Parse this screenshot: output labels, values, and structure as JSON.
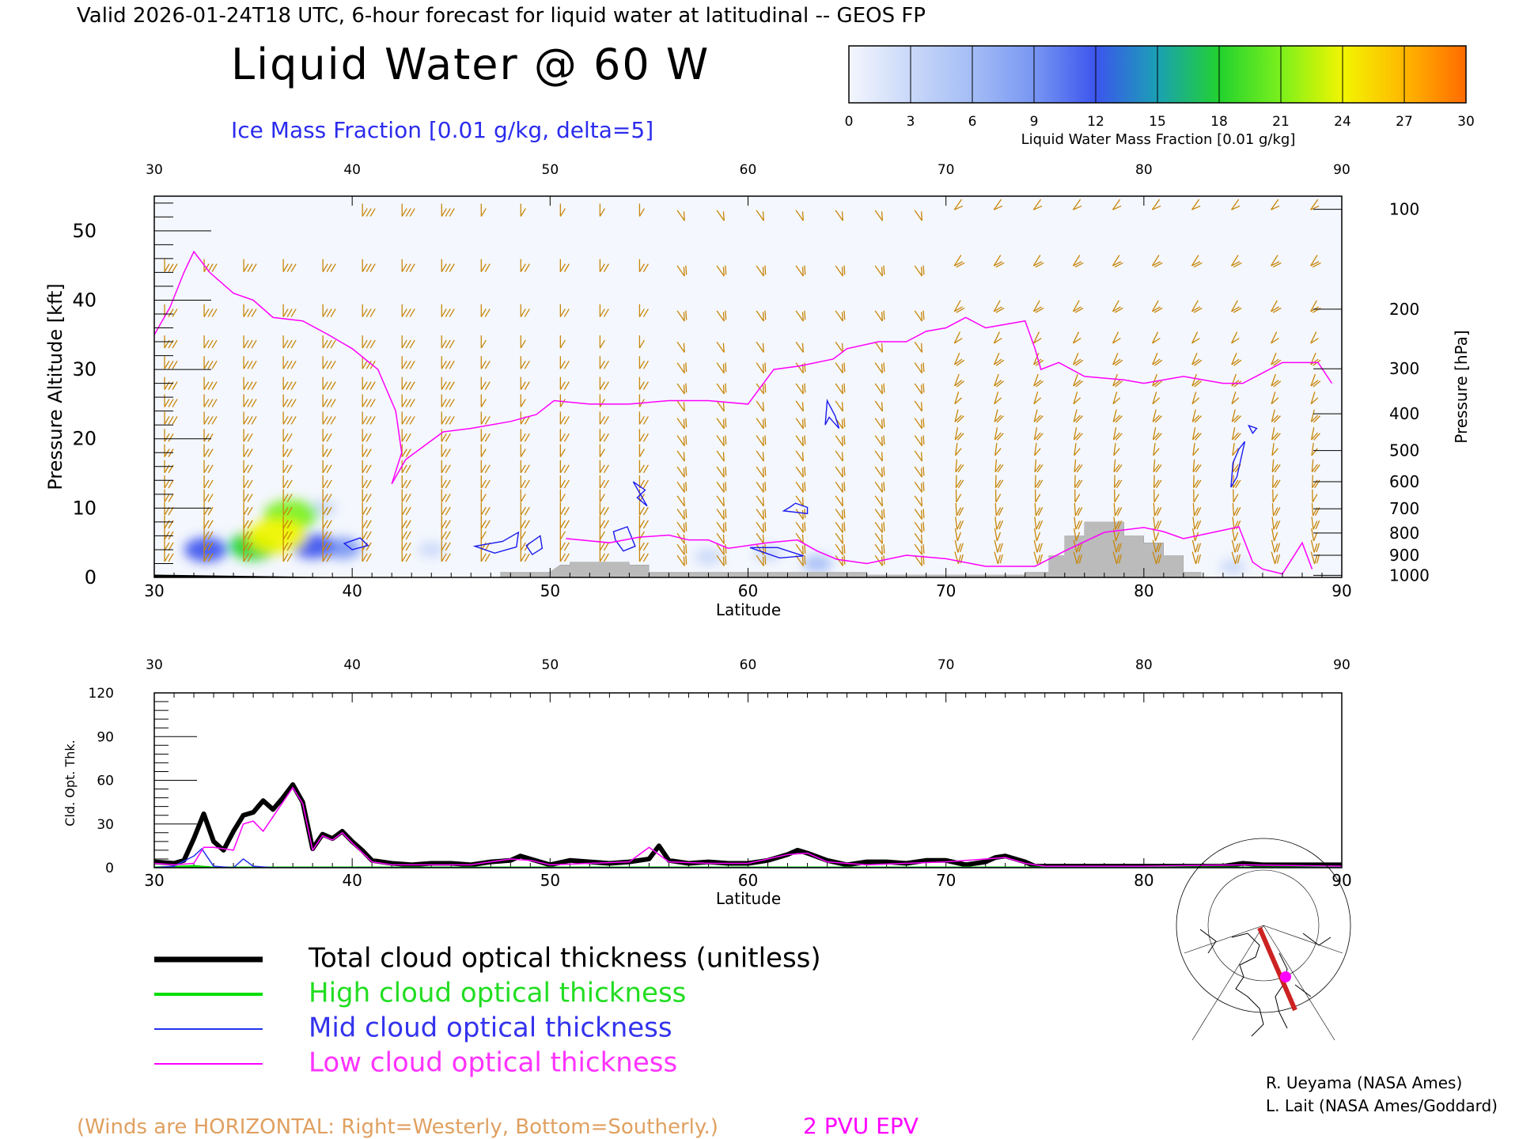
{
  "header": {
    "valid_line": "Valid 2026-01-24T18 UTC, 6-hour forecast for liquid water at latitudinal -- GEOS FP",
    "title": "Liquid Water @ 60 W",
    "subtitle": "Ice Mass Fraction [0.01 g/kg, delta=5]"
  },
  "colorbar": {
    "label": "Liquid Water Mass Fraction [0.01 g/kg]",
    "ticks": [
      "0",
      "3",
      "6",
      "9",
      "12",
      "15",
      "18",
      "21",
      "24",
      "27",
      "30"
    ],
    "colors": [
      "#f3f6fd",
      "#c9d8f9",
      "#a4bdf6",
      "#7896f2",
      "#3c55ee",
      "#1aa0b4",
      "#22d22e",
      "#7cf01c",
      "#f2f500",
      "#ffb700",
      "#ff6a00",
      "#ff2a00"
    ]
  },
  "colors": {
    "wind": "#c8860a",
    "epv": "#ff00ff",
    "ice": "#1a1aee",
    "terrain": "#bbbbbb",
    "total": "#000000",
    "high": "#00dd00",
    "mid": "#2233ee",
    "low": "#ff00ff"
  },
  "chart_data": [
    {
      "type": "heatmap",
      "title": "Liquid Water @ 60 W",
      "xlabel": "Latitude",
      "ylabel": "Pressure Altitude [kft]",
      "ylabel_right": "Pressure [hPa]",
      "xlim": [
        30,
        90
      ],
      "ylim": [
        0,
        55
      ],
      "x_ticks": [
        "30",
        "40",
        "50",
        "60",
        "70",
        "80",
        "90"
      ],
      "x_ticks_top": [
        "30",
        "40",
        "50",
        "60",
        "70",
        "80",
        "90"
      ],
      "y_ticks": [
        "0",
        "10",
        "20",
        "30",
        "40",
        "50"
      ],
      "pressure_ticks": [
        {
          "label": "100",
          "kft": 53.1
        },
        {
          "label": "200",
          "kft": 38.7
        },
        {
          "label": "300",
          "kft": 30.1
        },
        {
          "label": "400",
          "kft": 23.6
        },
        {
          "label": "500",
          "kft": 18.3
        },
        {
          "label": "600",
          "kft": 13.8
        },
        {
          "label": "700",
          "kft": 9.9
        },
        {
          "label": "800",
          "kft": 6.4
        },
        {
          "label": "900",
          "kft": 3.2
        },
        {
          "label": "1000",
          "kft": 0.3
        }
      ],
      "liquid_water_blobs": [
        {
          "lat": 32.6,
          "kft": 4.0,
          "value": 12
        },
        {
          "lat": 36.9,
          "kft": 9.0,
          "value": 18
        },
        {
          "lat": 36.2,
          "kft": 6.0,
          "value": 21
        },
        {
          "lat": 35.0,
          "kft": 4.5,
          "value": 15
        },
        {
          "lat": 38.0,
          "kft": 4.5,
          "value": 12
        },
        {
          "lat": 39.5,
          "kft": 4.2,
          "value": 9
        },
        {
          "lat": 38.5,
          "kft": 10.0,
          "value": 4
        },
        {
          "lat": 58.0,
          "kft": 3.0,
          "value": 4
        },
        {
          "lat": 63.5,
          "kft": 2.0,
          "value": 5
        },
        {
          "lat": 61.0,
          "kft": 3.5,
          "value": 4
        },
        {
          "lat": 44.0,
          "kft": 4.0,
          "value": 3
        },
        {
          "lat": 84.5,
          "kft": 1.5,
          "value": 3
        }
      ],
      "epv_2pvu": [
        [
          30,
          35
        ],
        [
          30.8,
          39
        ],
        [
          31.5,
          44
        ],
        [
          32,
          47
        ],
        [
          32.8,
          44
        ],
        [
          34,
          41
        ],
        [
          35,
          40
        ],
        [
          36,
          37.5
        ],
        [
          37.5,
          37
        ],
        [
          38.8,
          35
        ],
        [
          40,
          33
        ],
        [
          41.3,
          30
        ],
        [
          42.2,
          24
        ],
        [
          42.5,
          18
        ],
        [
          42,
          13.5
        ],
        [
          42.7,
          17
        ],
        [
          44.6,
          21
        ],
        [
          46,
          21.5
        ],
        [
          48,
          22.5
        ],
        [
          49.3,
          23.5
        ],
        [
          50.2,
          25.5
        ],
        [
          52,
          25
        ],
        [
          54,
          25
        ],
        [
          56,
          25.5
        ],
        [
          58,
          25.5
        ],
        [
          60,
          25
        ],
        [
          61.3,
          30
        ],
        [
          62.6,
          30.5
        ],
        [
          64.3,
          31.5
        ],
        [
          65,
          33
        ],
        [
          66.6,
          34
        ],
        [
          68,
          34
        ],
        [
          69,
          35.5
        ],
        [
          70,
          36
        ],
        [
          71,
          37.5
        ],
        [
          72,
          36
        ],
        [
          74,
          37
        ],
        [
          74.5,
          33
        ],
        [
          74.8,
          30
        ],
        [
          75.7,
          31
        ],
        [
          77,
          29
        ],
        [
          79,
          28.5
        ],
        [
          80,
          28
        ],
        [
          82,
          29
        ],
        [
          84,
          28
        ],
        [
          85,
          28
        ],
        [
          87,
          31
        ],
        [
          88.8,
          31
        ],
        [
          89.5,
          28
        ]
      ],
      "epv_low": [
        [
          50.8,
          5.6
        ],
        [
          53,
          5
        ],
        [
          54.5,
          5.8
        ],
        [
          56,
          6.1
        ],
        [
          57,
          5.4
        ],
        [
          58,
          5.4
        ],
        [
          59,
          4.2
        ],
        [
          61,
          5
        ],
        [
          62.5,
          5.4
        ],
        [
          63.5,
          3.8
        ],
        [
          64.5,
          2.6
        ],
        [
          66,
          2
        ],
        [
          68,
          3.2
        ],
        [
          70,
          2.7
        ],
        [
          72,
          1.6
        ],
        [
          74.5,
          1.6
        ],
        [
          76,
          3.8
        ],
        [
          78,
          6.5
        ],
        [
          80,
          7.2
        ],
        [
          81,
          6.6
        ],
        [
          82,
          5.6
        ],
        [
          84,
          6.8
        ],
        [
          84.8,
          7.3
        ],
        [
          85.5,
          2.2
        ],
        [
          86,
          1.2
        ],
        [
          87,
          0.5
        ],
        [
          88,
          5
        ],
        [
          88.5,
          1.2
        ]
      ],
      "ice_contours": [
        [
          [
            40,
            4
          ],
          [
            39.6,
            4.9
          ],
          [
            40.4,
            5.7
          ],
          [
            40.8,
            4.6
          ]
        ],
        [
          [
            46.2,
            4.5
          ],
          [
            47.6,
            5.2
          ],
          [
            48.4,
            6.5
          ],
          [
            48.3,
            4.4
          ],
          [
            47.2,
            3.5
          ]
        ],
        [
          [
            48.8,
            4.6
          ],
          [
            49.5,
            6.0
          ],
          [
            49.6,
            4.2
          ],
          [
            49.1,
            3.3
          ]
        ],
        [
          [
            53.3,
            5.4
          ],
          [
            53.2,
            6.6
          ],
          [
            53.9,
            7.3
          ],
          [
            54.3,
            4.5
          ],
          [
            53.7,
            3.8
          ]
        ],
        [
          [
            54.2,
            13.8
          ],
          [
            54.8,
            12.6
          ],
          [
            54.4,
            11.5
          ],
          [
            54.9,
            10.3
          ]
        ],
        [
          [
            62.1,
            10.1
          ],
          [
            61.8,
            9.6
          ],
          [
            63.0,
            9.2
          ],
          [
            63.0,
            10.1
          ],
          [
            62.4,
            10.7
          ]
        ],
        [
          [
            64.0,
            25.5
          ],
          [
            64.4,
            23.3
          ],
          [
            64.6,
            21.5
          ],
          [
            64.1,
            23.1
          ],
          [
            63.9,
            22.0
          ]
        ],
        [
          [
            84.5,
            16.5
          ],
          [
            84.8,
            18.5
          ],
          [
            85.1,
            19.6
          ],
          [
            84.7,
            14.5
          ],
          [
            84.4,
            13.0
          ]
        ],
        [
          [
            85.5,
            20.8
          ],
          [
            85.7,
            21.5
          ],
          [
            85.3,
            21.9
          ]
        ],
        [
          [
            60.1,
            4.3
          ],
          [
            61.5,
            4.3
          ],
          [
            62.8,
            3.1
          ],
          [
            61.6,
            2.8
          ]
        ]
      ],
      "terrain": [
        [
          30,
          0.4
        ],
        [
          40,
          0
        ],
        [
          47.5,
          0
        ],
        [
          47.5,
          0.8
        ],
        [
          50,
          0.8
        ],
        [
          50.5,
          1.8
        ],
        [
          51,
          1.8
        ],
        [
          51,
          2.2
        ],
        [
          54,
          2.2
        ],
        [
          54,
          1.8
        ],
        [
          55,
          1.8
        ],
        [
          55,
          0.8
        ],
        [
          66,
          0.8
        ],
        [
          66,
          0.4
        ],
        [
          74,
          0.4
        ],
        [
          74,
          0.8
        ],
        [
          75.2,
          0.8
        ],
        [
          75.2,
          3.2
        ],
        [
          76,
          3.2
        ],
        [
          76,
          6
        ],
        [
          77,
          6
        ],
        [
          77,
          8
        ],
        [
          79,
          8
        ],
        [
          79,
          6
        ],
        [
          80,
          6
        ],
        [
          80,
          5
        ],
        [
          81,
          5
        ],
        [
          81,
          3.2
        ],
        [
          82,
          3.2
        ],
        [
          82,
          0.8
        ],
        [
          82.9,
          0.8
        ],
        [
          82.9,
          0
        ],
        [
          90,
          0
        ]
      ]
    },
    {
      "type": "line",
      "xlabel": "Latitude",
      "ylabel": "Cld. Opt. Thk.",
      "xlim": [
        30,
        90
      ],
      "ylim": [
        0,
        120
      ],
      "x_ticks": [
        "30",
        "40",
        "50",
        "60",
        "70",
        "80",
        "90"
      ],
      "x_ticks_top": [
        "30",
        "40",
        "50",
        "60",
        "70",
        "80",
        "90"
      ],
      "y_ticks": [
        "0",
        "30",
        "60",
        "90",
        "120"
      ],
      "series": [
        {
          "name": "Total cloud optical thickness (unitless)",
          "x": [
            30,
            31,
            31.5,
            32,
            32.5,
            33,
            33.5,
            34,
            34.5,
            35,
            35.5,
            36,
            36.5,
            37,
            37.5,
            38,
            38.5,
            39,
            39.5,
            40,
            40.5,
            41,
            42,
            43,
            44,
            45,
            46,
            47,
            48,
            48.5,
            49,
            50,
            51,
            52,
            53,
            54,
            55,
            55.5,
            56,
            57,
            58,
            59,
            60,
            61,
            62,
            62.5,
            63,
            64,
            65,
            66,
            67,
            68,
            69,
            70,
            71,
            72,
            72.5,
            73,
            74,
            74.5,
            75,
            80,
            84,
            85,
            86,
            88,
            90
          ],
          "values": [
            4,
            3,
            5,
            20,
            37,
            18,
            12,
            25,
            36,
            38,
            46,
            40,
            48,
            57,
            45,
            13,
            23,
            20,
            25,
            18,
            12,
            5,
            3,
            2,
            3,
            3,
            2,
            4,
            5,
            8,
            6,
            2,
            5,
            4,
            3,
            4,
            6,
            15,
            5,
            3,
            4,
            3,
            3,
            5,
            9,
            12,
            10,
            5,
            2,
            4,
            4,
            3,
            5,
            5,
            2,
            4,
            7,
            8,
            4,
            1,
            1,
            1,
            1,
            3,
            2,
            2,
            2
          ]
        },
        {
          "name": "High cloud optical thickness",
          "x": [
            30,
            32,
            33,
            35,
            38,
            40,
            50,
            60,
            70,
            75,
            80,
            85,
            90
          ],
          "values": [
            0,
            1,
            0,
            0,
            0,
            0,
            0,
            0,
            0,
            0,
            0,
            0,
            0
          ]
        },
        {
          "name": "Mid cloud optical thickness",
          "x": [
            30,
            31,
            32,
            32.4,
            33,
            34,
            34.5,
            35,
            36,
            40,
            50,
            60,
            70,
            90
          ],
          "values": [
            0,
            1,
            8,
            13,
            1,
            0,
            6,
            1,
            0,
            0,
            0,
            0,
            0,
            0
          ]
        },
        {
          "name": "Low cloud optical thickness",
          "x": [
            30,
            31,
            32,
            32.5,
            33,
            34,
            34.5,
            35,
            35.5,
            36,
            36.5,
            37,
            37.5,
            38,
            38.5,
            39,
            39.5,
            40,
            41,
            42,
            44,
            46,
            48,
            49,
            50,
            52,
            54,
            55,
            56,
            58,
            60,
            62,
            63,
            64,
            66,
            68,
            70,
            72,
            73,
            74,
            75,
            80,
            85,
            90
          ],
          "values": [
            3,
            2,
            3,
            14,
            14,
            12,
            30,
            32,
            25,
            35,
            45,
            55,
            44,
            12,
            22,
            19,
            24,
            17,
            4,
            2,
            2,
            2,
            6,
            5,
            2,
            3,
            4,
            14,
            4,
            3,
            3,
            9,
            10,
            4,
            2,
            3,
            4,
            6,
            7,
            3,
            1,
            1,
            2,
            1
          ]
        }
      ]
    }
  ],
  "legend": {
    "total": "Total cloud optical thickness (unitless)",
    "high": "High cloud optical thickness",
    "mid": "Mid cloud optical thickness",
    "low": "Low cloud optical thickness"
  },
  "footer": {
    "winds_note": "(Winds are HORIZONTAL: Right=Westerly, Bottom=Southerly.)",
    "epv_label": "2 PVU EPV",
    "credit1": "R. Ueyama (NASA Ames)",
    "credit2": "L. Lait (NASA Ames/Goddard)"
  },
  "map_inset": {
    "description_icon": "north-polar-map-icon"
  }
}
